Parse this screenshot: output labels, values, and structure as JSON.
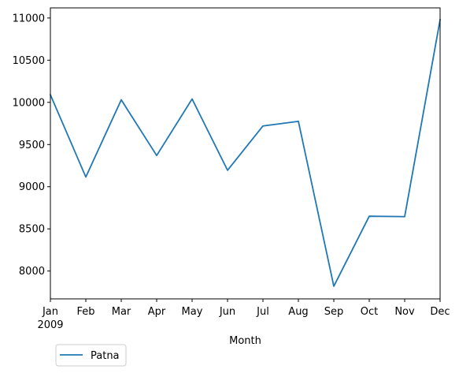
{
  "chart_data": {
    "type": "line",
    "title": "",
    "xlabel": "Month",
    "ylabel": "",
    "categories": [
      "Jan",
      "Feb",
      "Mar",
      "Apr",
      "May",
      "Jun",
      "Jul",
      "Aug",
      "Sep",
      "Oct",
      "Nov",
      "Dec"
    ],
    "year_label": "2009",
    "series": [
      {
        "name": "Patna",
        "values": [
          10090,
          9115,
          10030,
          9370,
          10040,
          9195,
          9720,
          9775,
          7820,
          8650,
          8645,
          10980
        ],
        "color": "#1f77b4"
      }
    ],
    "ylim": [
      7670,
      11120
    ],
    "yticks": [
      8000,
      8500,
      9000,
      9500,
      10000,
      10500,
      11000
    ],
    "grid": false,
    "legend_position": "bottom-left"
  }
}
